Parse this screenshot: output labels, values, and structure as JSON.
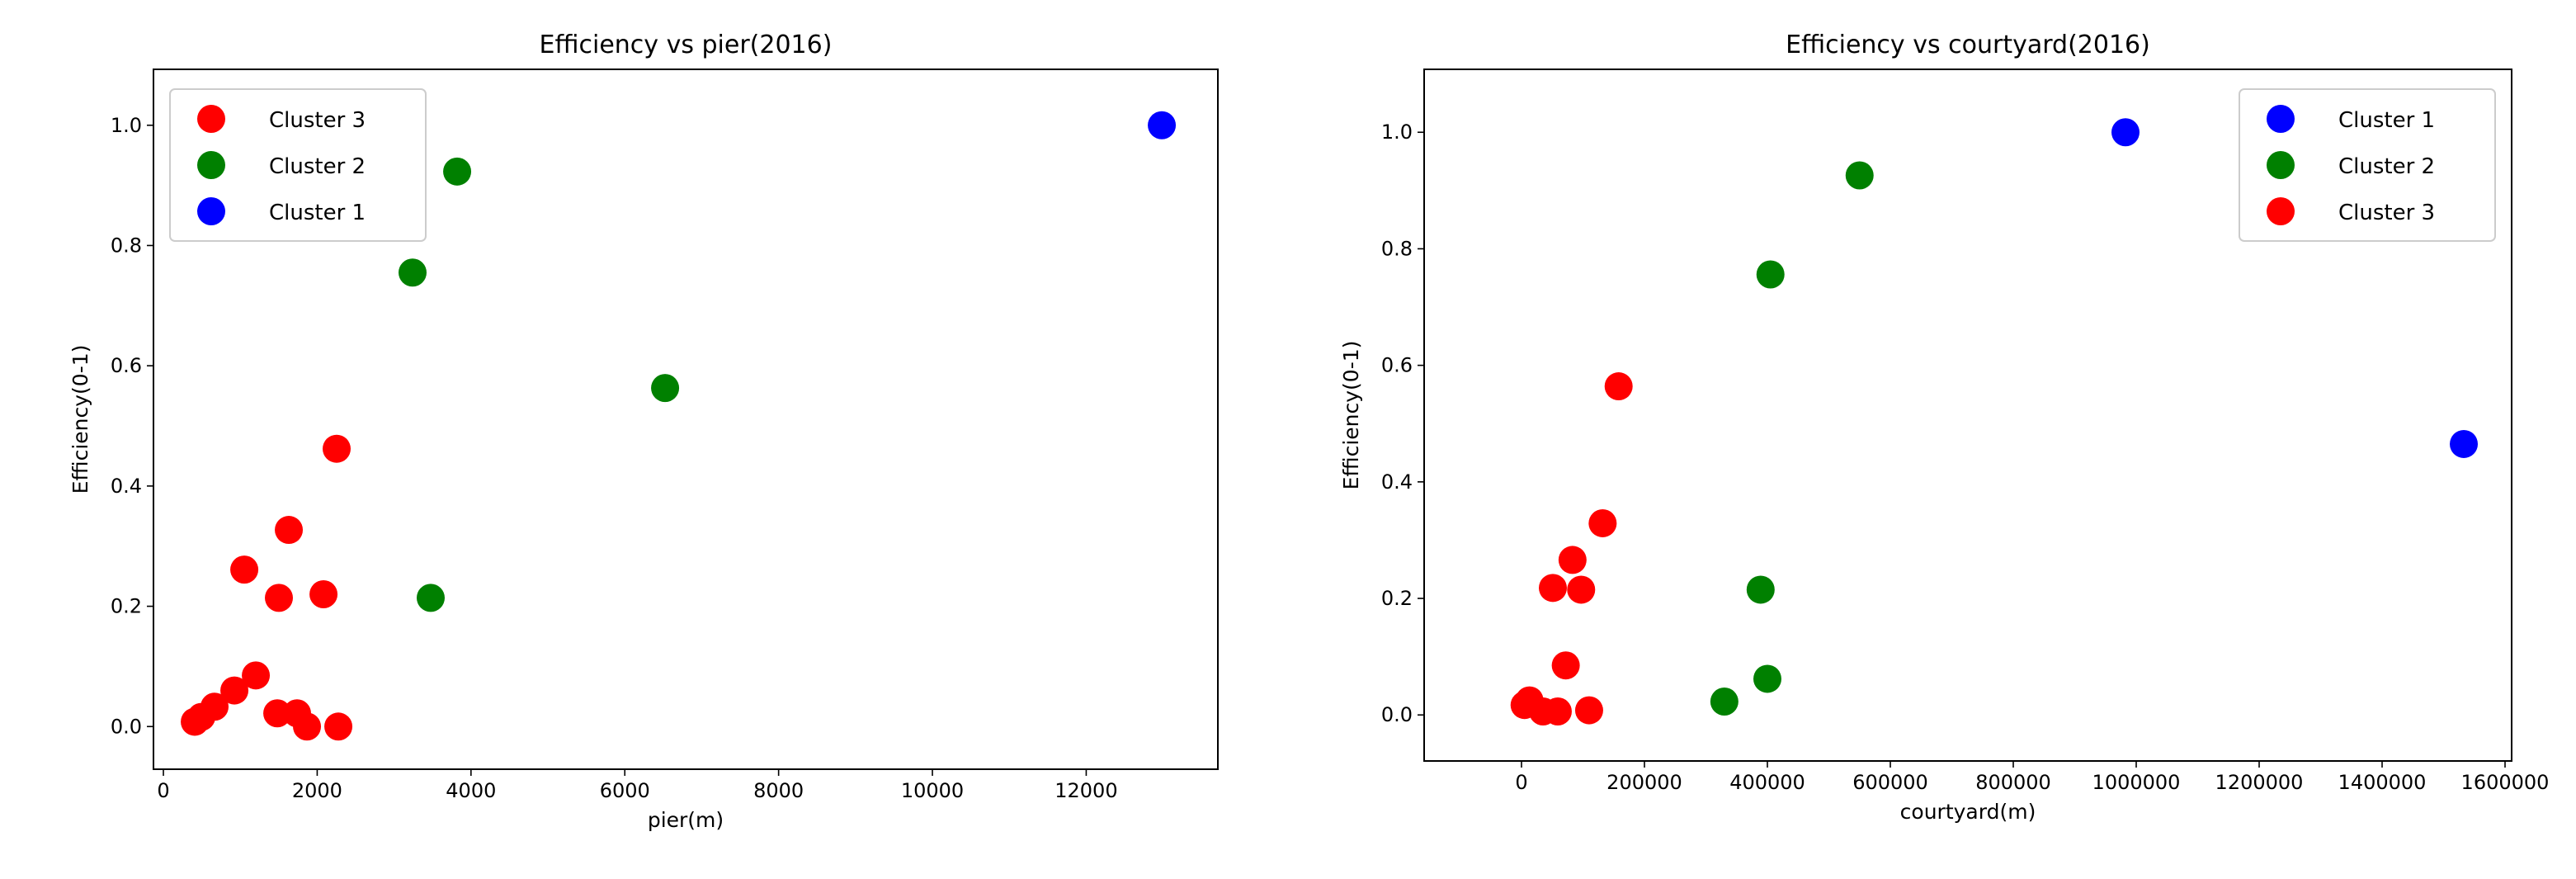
{
  "chart_data": [
    {
      "type": "scatter",
      "title": "Efficiency vs pier(2016)",
      "x_label": "pier(m)",
      "y_label": "Efficiency(0-1)",
      "xlim": [
        -129,
        13712
      ],
      "ylim": [
        -0.071,
        1.093
      ],
      "xticks": [
        0,
        2000,
        4000,
        6000,
        8000,
        10000,
        12000
      ],
      "yticks": [
        {
          "value": 0,
          "label": "0.0"
        },
        0.2,
        0.4,
        0.6,
        0.8,
        {
          "value": 1,
          "label": "1.0"
        }
      ],
      "legend": "upper left",
      "series": [
        {
          "name": "Cluster 3",
          "color": "#ff0000",
          "x": [
            2253,
            1631,
            1052,
            1502,
            2082,
            1202,
            923,
            665,
            494,
            1481,
            1738,
            1867,
            2275,
            408
          ],
          "y": [
            0.462,
            0.327,
            0.261,
            0.214,
            0.22,
            0.085,
            0.06,
            0.033,
            0.016,
            0.022,
            0.022,
            0.0,
            0.0,
            0.008
          ]
        },
        {
          "name": "Cluster 2",
          "color": "#008000",
          "x": [
            3820,
            3240,
            6524,
            3476
          ],
          "y": [
            0.923,
            0.755,
            0.563,
            0.214
          ]
        },
        {
          "name": "Cluster 1",
          "color": "#0000ff",
          "x": [
            12983
          ],
          "y": [
            1.0
          ]
        }
      ]
    },
    {
      "type": "scatter",
      "title": "Efficiency vs courtyard(2016)",
      "x_label": "courtyard(m)",
      "y_label": "Efficiency(0-1)",
      "xlim": [
        -158389,
        1610738
      ],
      "ylim": [
        -0.079,
        1.108
      ],
      "xticks": [
        0,
        200000,
        400000,
        600000,
        800000,
        1000000,
        1200000,
        1400000,
        1600000
      ],
      "yticks": [
        {
          "value": 0,
          "label": "0.0"
        },
        0.2,
        0.4,
        0.6,
        0.8,
        {
          "value": 1,
          "label": "1.0"
        }
      ],
      "legend": "upper right",
      "series": [
        {
          "name": "Cluster 1",
          "color": "#0000ff",
          "x": [
            982550,
            1532900
          ],
          "y": [
            1.0,
            0.465
          ]
        },
        {
          "name": "Cluster 2",
          "color": "#008000",
          "x": [
            550000,
            405000,
            389000,
            400000,
            330000
          ],
          "y": [
            0.926,
            0.756,
            0.215,
            0.062,
            0.023
          ]
        },
        {
          "name": "Cluster 3",
          "color": "#ff0000",
          "x": [
            158000,
            132000,
            83000,
            51000,
            97000,
            72000,
            13000,
            35000,
            59000,
            110000,
            5000
          ],
          "y": [
            0.564,
            0.329,
            0.266,
            0.218,
            0.215,
            0.085,
            0.025,
            0.006,
            0.006,
            0.008,
            0.017
          ]
        }
      ]
    }
  ]
}
